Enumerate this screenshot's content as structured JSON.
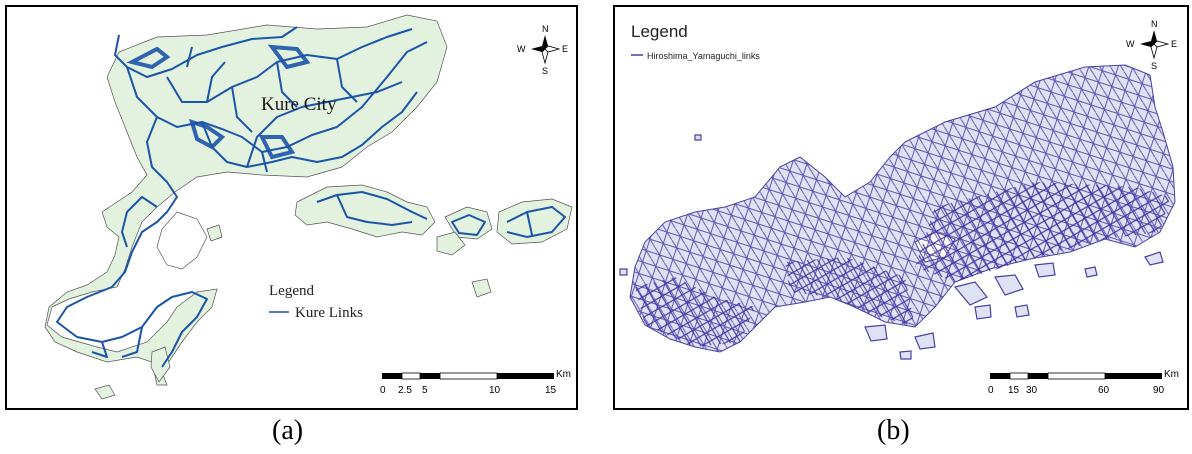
{
  "panel_a": {
    "place_label": "Kure City",
    "legend_title": "Legend",
    "legend_item": "Kure Links",
    "scale_unit": "Km",
    "scale_ticks": [
      "0",
      "2.5",
      "5",
      "10",
      "15"
    ],
    "compass": {
      "n": "N",
      "s": "S",
      "e": "E",
      "w": "W"
    },
    "caption": "(a)",
    "colors": {
      "land": "#e3f1df",
      "links": "#1b55a8"
    }
  },
  "panel_b": {
    "legend_title": "Legend",
    "legend_item": "Hiroshima_Yamaguchi_links",
    "scale_unit": "Km",
    "scale_ticks": [
      "0",
      "15",
      "30",
      "60",
      "90"
    ],
    "compass": {
      "n": "N",
      "s": "S",
      "e": "E",
      "w": "W"
    },
    "caption": "(b)",
    "colors": {
      "land": "#dfe2f3",
      "links": "#4a3fa4"
    }
  }
}
